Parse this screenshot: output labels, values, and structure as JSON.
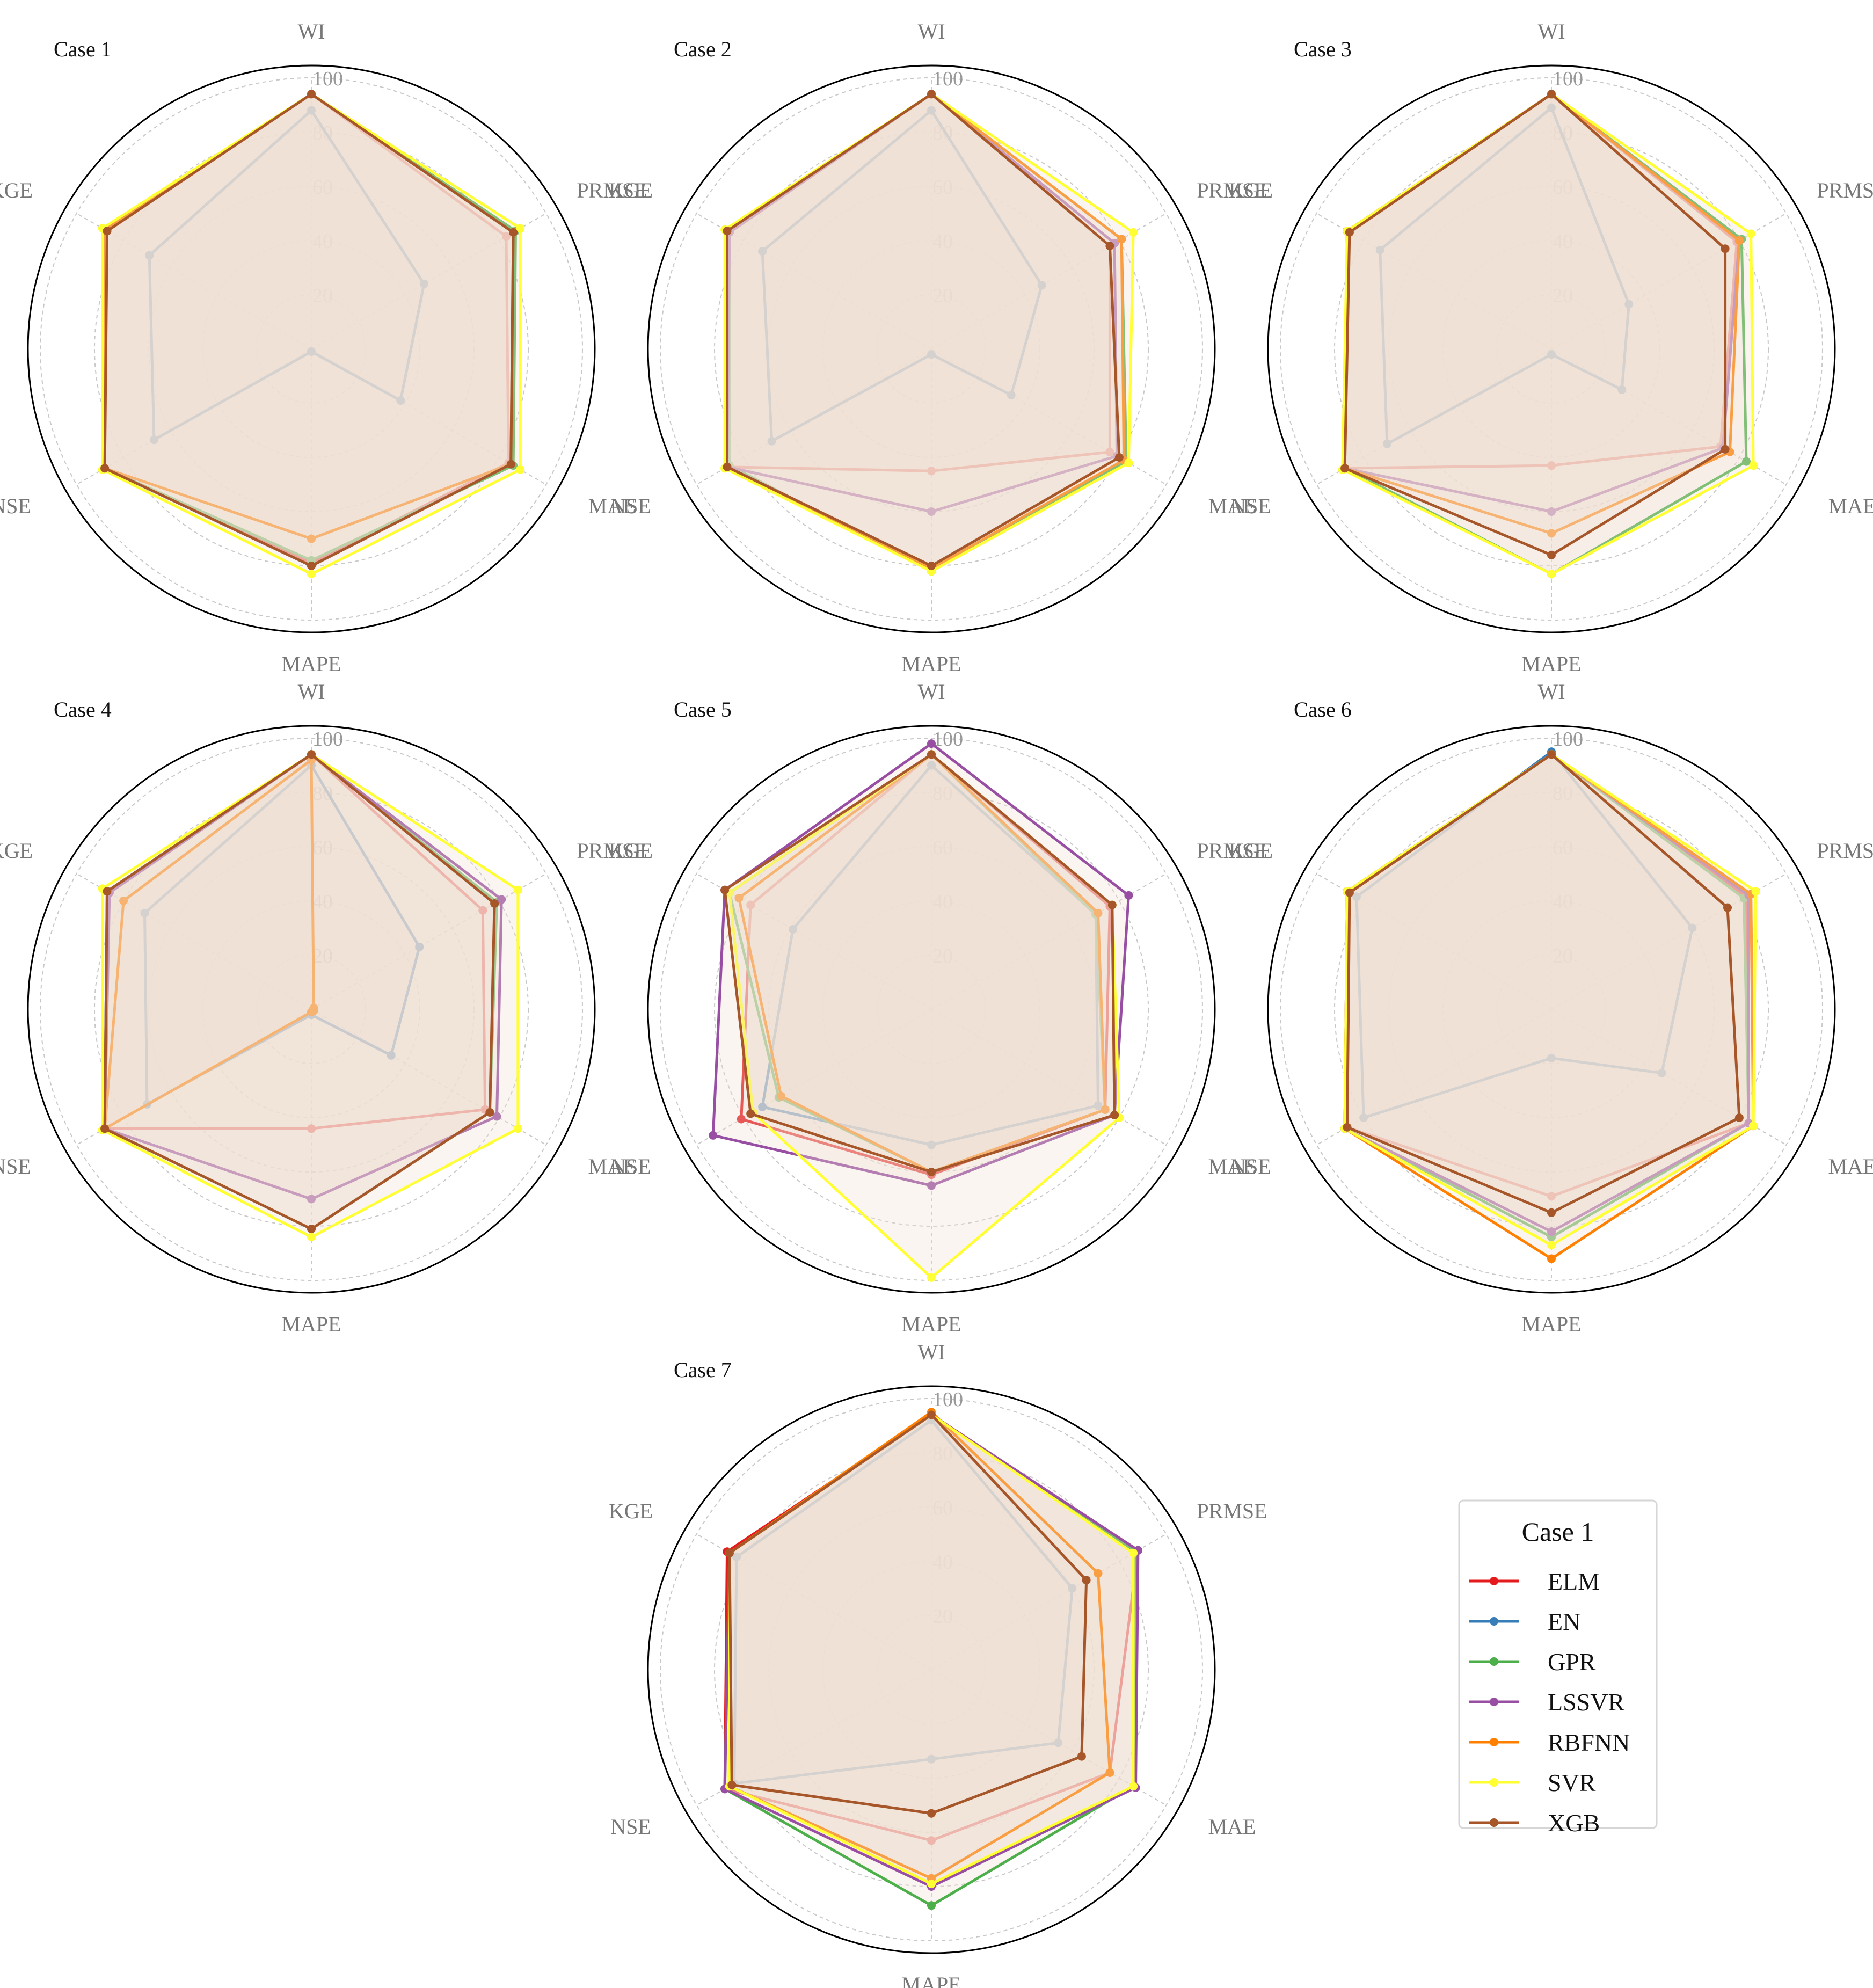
{
  "chart_data": {
    "type": "radar",
    "axes": [
      "WI",
      "PRMSE",
      "MAE",
      "MAPE",
      "NSE",
      "KGE"
    ],
    "ticks": [
      20,
      40,
      60,
      80,
      100
    ],
    "rlim": [
      0,
      100
    ],
    "fill_color": "#f0e1d2",
    "models": [
      {
        "name": "ELM",
        "color": "#e41a1c"
      },
      {
        "name": "EN",
        "color": "#377eb8"
      },
      {
        "name": "GPR",
        "color": "#4daf4a"
      },
      {
        "name": "LSSVR",
        "color": "#984ea3"
      },
      {
        "name": "RBFNN",
        "color": "#ff7f00"
      },
      {
        "name": "SVR",
        "color": "#ffff33"
      },
      {
        "name": "XGB",
        "color": "#a65628"
      }
    ],
    "legend": {
      "title": "Case 1",
      "position": "lower-right"
    },
    "cases": [
      {
        "title": "Case 1",
        "series": [
          {
            "name": "ELM",
            "values": [
              94,
              83,
              84,
              79,
              88,
              87
            ]
          },
          {
            "name": "EN",
            "values": [
              88,
              48,
              38,
              1,
              67,
              69
            ]
          },
          {
            "name": "GPR",
            "values": [
              94,
              87,
              86,
              78,
              88,
              88
            ]
          },
          {
            "name": "LSSVR",
            "values": [
              94,
              86,
              85,
              80,
              88,
              88
            ]
          },
          {
            "name": "RBFNN",
            "values": [
              94,
              86,
              85,
              70,
              88,
              88
            ]
          },
          {
            "name": "SVR",
            "values": [
              94,
              89,
              89,
              83,
              89,
              89
            ]
          },
          {
            "name": "XGB",
            "values": [
              94,
              86,
              85,
              80,
              88,
              87
            ]
          }
        ]
      },
      {
        "title": "Case 2",
        "series": [
          {
            "name": "ELM",
            "values": [
              94,
              76,
              76,
              45,
              87,
              87
            ]
          },
          {
            "name": "EN",
            "values": [
              88,
              47,
              34,
              2,
              68,
              72
            ]
          },
          {
            "name": "GPR",
            "values": [
              94,
              81,
              83,
              82,
              86,
              86
            ]
          },
          {
            "name": "LSSVR",
            "values": [
              94,
              78,
              79,
              60,
              87,
              86
            ]
          },
          {
            "name": "RBFNN",
            "values": [
              94,
              81,
              82,
              81,
              87,
              87
            ]
          },
          {
            "name": "SVR",
            "values": [
              94,
              86,
              84,
              82,
              88,
              88
            ]
          },
          {
            "name": "XGB",
            "values": [
              94,
              76,
              80,
              80,
              87,
              87
            ]
          }
        ]
      },
      {
        "title": "Case 3",
        "series": [
          {
            "name": "ELM",
            "values": [
              94,
              79,
              72,
              43,
              88,
              87
            ]
          },
          {
            "name": "EN",
            "values": [
              89,
              33,
              30,
              2,
              70,
              73
            ]
          },
          {
            "name": "GPR",
            "values": [
              94,
              81,
              83,
              83,
              88,
              86
            ]
          },
          {
            "name": "LSSVR",
            "values": [
              94,
              80,
              73,
              60,
              88,
              87
            ]
          },
          {
            "name": "RBFNN",
            "values": [
              94,
              80,
              76,
              68,
              88,
              87
            ]
          },
          {
            "name": "SVR",
            "values": [
              94,
              85,
              86,
              83,
              89,
              87
            ]
          },
          {
            "name": "XGB",
            "values": [
              94,
              74,
              74,
              76,
              88,
              86
            ]
          }
        ]
      },
      {
        "title": "Case 4",
        "series": [
          {
            "name": "ELM",
            "values": [
              94,
              73,
              74,
              44,
              88,
              87
            ]
          },
          {
            "name": "EN",
            "values": [
              90,
              46,
              34,
              2,
              70,
              71
            ]
          },
          {
            "name": "GPR",
            "values": [
              94,
              79,
              76,
              81,
              88,
              87
            ]
          },
          {
            "name": "LSSVR",
            "values": [
              94,
              81,
              79,
              70,
              88,
              86
            ]
          },
          {
            "name": "RBFNN",
            "values": [
              92,
              1,
              1,
              1,
              88,
              80
            ]
          },
          {
            "name": "SVR",
            "values": [
              94,
              88,
              88,
              84,
              89,
              89
            ]
          },
          {
            "name": "XGB",
            "values": [
              94,
              78,
              76,
              81,
              88,
              87
            ]
          }
        ]
      },
      {
        "title": "Case 5",
        "series": [
          {
            "name": "ELM",
            "values": [
              94,
              76,
              74,
              61,
              81,
              77
            ]
          },
          {
            "name": "EN",
            "values": [
              90,
              70,
              71,
              50,
              72,
              59
            ]
          },
          {
            "name": "GPR",
            "values": [
              94,
              70,
              74,
              60,
              65,
              86
            ]
          },
          {
            "name": "LSSVR",
            "values": [
              98,
              84,
              78,
              65,
              93,
              88
            ]
          },
          {
            "name": "RBFNN",
            "values": [
              94,
              71,
              74,
              60,
              64,
              82
            ]
          },
          {
            "name": "SVR",
            "values": [
              94,
              77,
              80,
              99,
              76,
              86
            ]
          },
          {
            "name": "XGB",
            "values": [
              94,
              77,
              78,
              60,
              77,
              88
            ]
          }
        ]
      },
      {
        "title": "Case 6",
        "series": [
          {
            "name": "ELM",
            "values": [
              94,
              83,
              84,
              69,
              87,
              87
            ]
          },
          {
            "name": "EN",
            "values": [
              95,
              60,
              47,
              18,
              80,
              83
            ]
          },
          {
            "name": "GPR",
            "values": [
              94,
              82,
              84,
              84,
              88,
              87
            ]
          },
          {
            "name": "LSSVR",
            "values": [
              94,
              84,
              84,
              82,
              88,
              87
            ]
          },
          {
            "name": "RBFNN",
            "values": [
              94,
              85,
              86,
              92,
              88,
              87
            ]
          },
          {
            "name": "SVR",
            "values": [
              94,
              87,
              86,
              87,
              88,
              87
            ]
          },
          {
            "name": "XGB",
            "values": [
              94,
              75,
              80,
              75,
              87,
              86
            ]
          }
        ]
      },
      {
        "title": "Case 7",
        "series": [
          {
            "name": "ELM",
            "values": [
              94,
              88,
              76,
              63,
              88,
              87
            ]
          },
          {
            "name": "EN",
            "values": [
              92,
              60,
              54,
              33,
              84,
              83
            ]
          },
          {
            "name": "GPR",
            "values": [
              94,
              87,
              86,
              87,
              88,
              86
            ]
          },
          {
            "name": "LSSVR",
            "values": [
              94,
              88,
              87,
              80,
              88,
              86
            ]
          },
          {
            "name": "RBFNN",
            "values": [
              95,
              71,
              76,
              77,
              86,
              86
            ]
          },
          {
            "name": "SVR",
            "values": [
              94,
              86,
              86,
              79,
              86,
              86
            ]
          },
          {
            "name": "XGB",
            "values": [
              94,
              66,
              64,
              53,
              85,
              86
            ]
          }
        ]
      }
    ]
  }
}
